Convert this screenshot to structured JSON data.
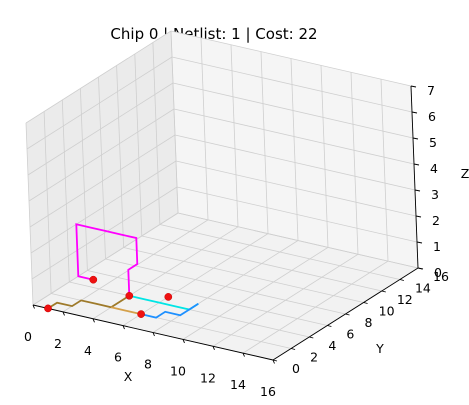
{
  "chart_data": {
    "type": "line",
    "projection": "3d",
    "title": "Chip 0  | Netlist: 1  | Cost: 22",
    "xlabel": "X",
    "ylabel": "Y",
    "zlabel": "Z",
    "xlim": [
      0,
      16
    ],
    "ylim": [
      0,
      16
    ],
    "zlim": [
      0,
      7
    ],
    "x_ticks": [
      "0",
      "2",
      "4",
      "6",
      "8",
      "10",
      "12",
      "14",
      "16"
    ],
    "y_ticks": [
      "0",
      "2",
      "4",
      "6",
      "8",
      "10",
      "12",
      "14",
      "16"
    ],
    "z_ticks": [
      "0",
      "1",
      "2",
      "3",
      "4",
      "5",
      "6",
      "7"
    ],
    "grid": true,
    "gates": [
      {
        "x": 1,
        "y": 5,
        "z": 0
      },
      {
        "x": 6,
        "y": 5,
        "z": 0
      },
      {
        "x": 4,
        "y": 4,
        "z": 0
      },
      {
        "x": 6,
        "y": 2,
        "z": 0
      },
      {
        "x": 1,
        "y": 0,
        "z": 0
      }
    ],
    "series": [
      {
        "color": "#ff00ff",
        "points": [
          [
            1,
            5,
            0
          ],
          [
            0,
            5,
            0
          ],
          [
            0,
            5,
            1
          ],
          [
            0,
            5,
            2
          ],
          [
            1,
            5,
            2
          ],
          [
            2,
            5,
            2
          ],
          [
            3,
            5,
            2
          ],
          [
            4,
            5,
            2
          ],
          [
            4,
            5,
            1
          ],
          [
            4,
            4,
            1
          ],
          [
            4,
            4,
            0
          ]
        ]
      },
      {
        "color": "#00e5e5",
        "points": [
          [
            4,
            4,
            0
          ],
          [
            5,
            4,
            0
          ],
          [
            6,
            4,
            0
          ],
          [
            7,
            4,
            0
          ],
          [
            8,
            4,
            0
          ],
          [
            8,
            5,
            0
          ]
        ]
      },
      {
        "color": "#1e90ff",
        "points": [
          [
            8,
            5,
            0
          ],
          [
            8,
            4,
            0
          ],
          [
            8,
            3,
            0
          ],
          [
            7,
            3,
            0
          ],
          [
            7,
            2,
            0
          ],
          [
            6,
            2,
            0
          ]
        ]
      },
      {
        "color": "#9e7a2a",
        "points": [
          [
            1,
            0,
            0
          ],
          [
            1,
            1,
            0
          ],
          [
            2,
            1,
            0
          ],
          [
            2,
            2,
            0
          ],
          [
            3,
            2,
            0
          ],
          [
            4,
            2,
            0
          ],
          [
            4,
            3,
            0
          ],
          [
            4,
            4,
            0
          ]
        ]
      },
      {
        "color": "#d4a04a",
        "points": [
          [
            6,
            2,
            0
          ],
          [
            5,
            2,
            0
          ],
          [
            4,
            2,
            0
          ]
        ]
      }
    ]
  }
}
